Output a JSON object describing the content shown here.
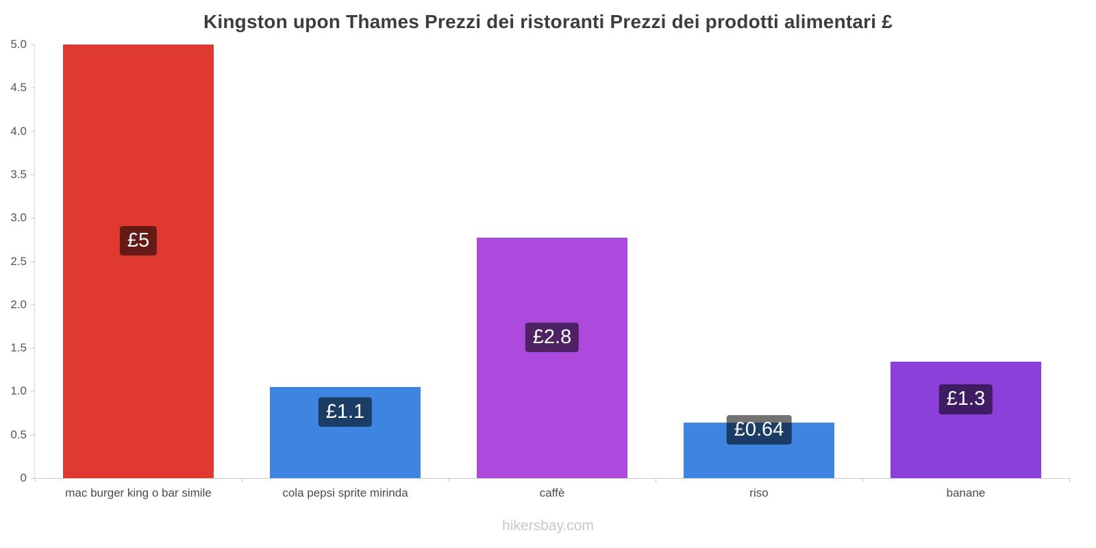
{
  "title": "Kingston upon Thames Prezzi dei ristoranti Prezzi dei prodotti alimentari £",
  "footer": "hikersbay.com",
  "chart_data": {
    "type": "bar",
    "title": "Kingston upon Thames Prezzi dei ristoranti Prezzi dei prodotti alimentari £",
    "categories": [
      "mac burger king o bar simile",
      "cola pepsi sprite mirinda",
      "caffè",
      "riso",
      "banane"
    ],
    "values": [
      5.0,
      1.05,
      2.77,
      0.64,
      1.34
    ],
    "labels": [
      "£5",
      "£1.1",
      "£2.8",
      "£0.64",
      "£1.3"
    ],
    "bar_colors": [
      "#e03a30",
      "#3d85e0",
      "#ad4add",
      "#3d85e0",
      "#8b41d9"
    ],
    "value_label_bg": "rgba(0,0,0,0.55)",
    "value_label_color": "#ffffff",
    "currency": "£",
    "xlabel": "",
    "ylabel": "",
    "ylim": [
      0,
      5
    ],
    "yticks": [
      0,
      0.5,
      1.0,
      1.5,
      2.0,
      2.5,
      3.0,
      3.5,
      4.0,
      4.5,
      5.0
    ],
    "grid": false,
    "legend": false
  }
}
